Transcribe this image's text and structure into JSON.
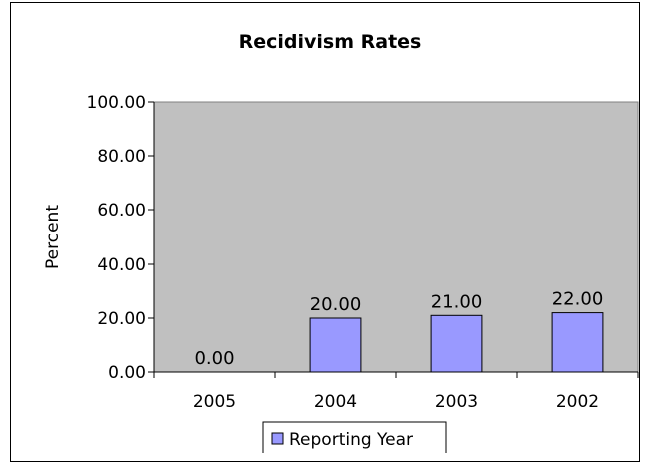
{
  "chart_data": {
    "type": "bar",
    "title": "Recidivism Rates",
    "xlabel": "",
    "ylabel": "Percent",
    "categories": [
      "2005",
      "2004",
      "2003",
      "2002"
    ],
    "series": [
      {
        "name": "Reporting Year",
        "values": [
          0.0,
          20.0,
          21.0,
          22.0
        ],
        "color": "#9999ff"
      }
    ],
    "data_labels": [
      "0.00",
      "20.00",
      "21.00",
      "22.00"
    ],
    "ylim": [
      0,
      100
    ],
    "yticks": [
      0,
      20,
      40,
      60,
      80,
      100
    ],
    "ytick_labels": [
      "0.00",
      "20.00",
      "40.00",
      "60.00",
      "80.00",
      "100.00"
    ],
    "grid": false,
    "plot_background": "#c0c0c0",
    "legend_position": "bottom"
  }
}
